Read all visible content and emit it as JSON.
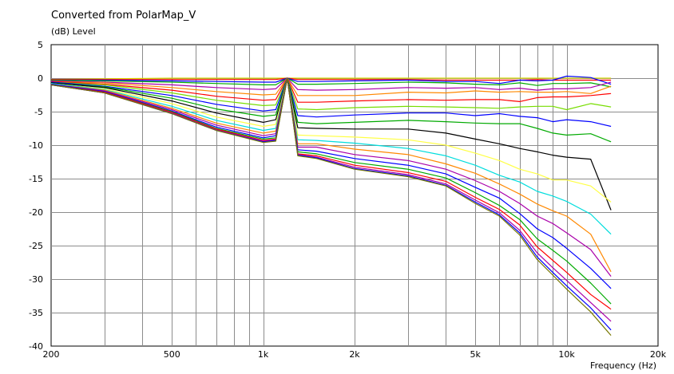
{
  "chart_data": {
    "type": "line",
    "title": "Converted from PolarMap_V",
    "ylabel": "(dB)  Level",
    "xlabel": "Frequency  (Hz)",
    "x_scale": "log",
    "xlim": [
      200,
      20000
    ],
    "ylim": [
      -40,
      5
    ],
    "grid": true,
    "legend": "none",
    "x_ticks": [
      {
        "v": 200,
        "t": "200"
      },
      {
        "v": 500,
        "t": "500"
      },
      {
        "v": 1000,
        "t": "1k"
      },
      {
        "v": 2000,
        "t": "2k"
      },
      {
        "v": 5000,
        "t": "5k"
      },
      {
        "v": 10000,
        "t": "10k"
      },
      {
        "v": 20000,
        "t": "20k"
      }
    ],
    "y_ticks": [
      5,
      0,
      -5,
      -10,
      -15,
      -20,
      -25,
      -30,
      -35,
      -40
    ],
    "x": [
      200,
      300,
      500,
      700,
      1000,
      1100,
      1200,
      1300,
      1500,
      2000,
      3000,
      4000,
      5000,
      6000,
      7000,
      8000,
      9000,
      10000,
      12000,
      14000
    ],
    "series": [
      {
        "color": "#d4d400",
        "values": [
          -0.2,
          -0.1,
          0,
          0,
          0,
          0,
          0,
          0,
          0,
          0,
          0,
          0,
          0,
          0,
          0,
          0,
          0,
          0,
          0,
          0
        ]
      },
      {
        "color": "#ff0000",
        "values": [
          -0.2,
          -0.2,
          -0.2,
          -0.2,
          -0.2,
          -0.2,
          0,
          -0.2,
          -0.2,
          -0.2,
          -0.2,
          -0.3,
          -0.3,
          -0.3,
          -0.3,
          -0.2,
          -0.3,
          -0.3,
          -0.3,
          -0.3
        ]
      },
      {
        "color": "#0000ff",
        "values": [
          -0.3,
          -0.3,
          -0.4,
          -0.5,
          -0.6,
          -0.6,
          0,
          -0.5,
          -0.5,
          -0.4,
          -0.3,
          -0.5,
          -0.5,
          -0.8,
          -0.3,
          -0.4,
          -0.3,
          0.3,
          0.1,
          -0.9
        ]
      },
      {
        "color": "#00aa00",
        "values": [
          -0.3,
          -0.4,
          -0.6,
          -0.8,
          -1.0,
          -1.0,
          0,
          -0.9,
          -0.9,
          -0.8,
          -0.6,
          -0.7,
          -0.9,
          -1.0,
          -0.7,
          -1.1,
          -0.8,
          -0.8,
          -0.7,
          -1.3
        ]
      },
      {
        "color": "#aa00aa",
        "values": [
          -0.4,
          -0.6,
          -1.0,
          -1.4,
          -1.7,
          -1.6,
          0,
          -1.7,
          -1.8,
          -1.7,
          -1.4,
          -1.5,
          -1.4,
          -1.7,
          -1.5,
          -1.8,
          -1.6,
          -1.6,
          -1.4,
          -0.6
        ]
      },
      {
        "color": "#ff8800",
        "values": [
          -0.5,
          -0.7,
          -1.4,
          -2.0,
          -2.5,
          -2.4,
          0,
          -2.6,
          -2.6,
          -2.6,
          -2.1,
          -2.2,
          -1.9,
          -2.1,
          -2.0,
          -2.1,
          -2.1,
          -2.0,
          -2.3,
          -1.2
        ]
      },
      {
        "color": "#ff0000",
        "values": [
          -0.5,
          -0.9,
          -1.8,
          -2.7,
          -3.3,
          -3.2,
          0,
          -3.6,
          -3.6,
          -3.4,
          -3.2,
          -3.3,
          -3.2,
          -3.2,
          -3.5,
          -2.9,
          -2.8,
          -2.8,
          -2.6,
          -2.3
        ]
      },
      {
        "color": "#77dd00",
        "values": [
          -0.6,
          -1.0,
          -2.2,
          -3.3,
          -4.1,
          -4.0,
          0,
          -4.6,
          -4.7,
          -4.4,
          -4.2,
          -4.3,
          -4.4,
          -4.5,
          -4.3,
          -4.2,
          -4.2,
          -4.7,
          -3.8,
          -4.3
        ]
      },
      {
        "color": "#0000ff",
        "values": [
          -0.6,
          -1.2,
          -2.6,
          -3.9,
          -4.9,
          -4.7,
          0,
          -5.6,
          -5.8,
          -5.5,
          -5.2,
          -5.2,
          -5.6,
          -5.3,
          -5.7,
          -5.9,
          -6.5,
          -6.2,
          -6.5,
          -7.2
        ]
      },
      {
        "color": "#00aa00",
        "values": [
          -0.7,
          -1.3,
          -3.0,
          -4.6,
          -5.7,
          -5.5,
          0,
          -6.6,
          -6.8,
          -6.6,
          -6.3,
          -6.5,
          -6.7,
          -6.8,
          -6.8,
          -7.5,
          -8.2,
          -8.5,
          -8.3,
          -9.5
        ]
      },
      {
        "color": "#000000",
        "values": [
          -0.7,
          -1.4,
          -3.4,
          -5.2,
          -6.6,
          -6.2,
          0,
          -7.4,
          -7.5,
          -7.6,
          -7.6,
          -8.2,
          -9.1,
          -9.8,
          -10.5,
          -11.0,
          -11.5,
          -11.8,
          -12.1,
          -19.7
        ]
      },
      {
        "color": "#ffff44",
        "values": [
          -0.8,
          -1.6,
          -3.8,
          -5.8,
          -7.2,
          -6.9,
          0,
          -8.5,
          -8.6,
          -8.8,
          -9.2,
          -10.0,
          -11.2,
          -12.3,
          -13.6,
          -14.3,
          -15.2,
          -15.2,
          -16.1,
          -18.5
        ]
      },
      {
        "color": "#00dddd",
        "values": [
          -0.8,
          -1.7,
          -4.2,
          -6.3,
          -7.8,
          -7.5,
          0,
          -9.2,
          -9.3,
          -9.7,
          -10.5,
          -11.6,
          -13.0,
          -14.5,
          -15.5,
          -16.9,
          -17.6,
          -18.4,
          -20.3,
          -23.3
        ]
      },
      {
        "color": "#ff8800",
        "values": [
          -0.9,
          -1.8,
          -4.5,
          -6.7,
          -8.2,
          -7.9,
          0,
          -9.8,
          -9.8,
          -10.6,
          -11.4,
          -12.8,
          -14.2,
          -15.8,
          -17.3,
          -18.8,
          -19.8,
          -20.6,
          -23.3,
          -28.9
        ]
      },
      {
        "color": "#aa00aa",
        "values": [
          -0.9,
          -1.9,
          -4.7,
          -7.0,
          -8.6,
          -8.3,
          0,
          -10.3,
          -10.3,
          -11.4,
          -12.3,
          -13.6,
          -15.3,
          -16.9,
          -18.7,
          -20.6,
          -21.7,
          -23.1,
          -25.6,
          -29.6
        ]
      },
      {
        "color": "#0000ff",
        "values": [
          -0.9,
          -2.0,
          -4.9,
          -7.3,
          -8.9,
          -8.6,
          0,
          -10.7,
          -10.9,
          -12.0,
          -13.0,
          -14.3,
          -16.3,
          -17.9,
          -20.2,
          -22.5,
          -23.8,
          -25.4,
          -28.4,
          -31.4
        ]
      },
      {
        "color": "#00aa00",
        "values": [
          -1.0,
          -2.1,
          -5.0,
          -7.5,
          -9.1,
          -8.9,
          0,
          -11.0,
          -11.3,
          -12.6,
          -13.6,
          -14.9,
          -17.1,
          -19.0,
          -21.1,
          -24.0,
          -25.7,
          -27.3,
          -30.6,
          -33.7
        ]
      },
      {
        "color": "#ff0000",
        "values": [
          -1.0,
          -2.1,
          -5.1,
          -7.6,
          -9.3,
          -9.1,
          0,
          -11.3,
          -11.6,
          -13.0,
          -14.1,
          -15.4,
          -17.8,
          -19.6,
          -21.9,
          -25.2,
          -27.2,
          -29.0,
          -32.3,
          -34.5
        ]
      },
      {
        "color": "#aa00aa",
        "values": [
          -1.0,
          -2.2,
          -5.2,
          -7.7,
          -9.4,
          -9.2,
          0,
          -11.4,
          -11.8,
          -13.3,
          -14.4,
          -15.8,
          -18.2,
          -20.1,
          -22.7,
          -26.1,
          -28.3,
          -30.2,
          -33.5,
          -36.3
        ]
      },
      {
        "color": "#0000ff",
        "values": [
          -1.0,
          -2.2,
          -5.3,
          -7.8,
          -9.5,
          -9.3,
          0,
          -11.5,
          -11.9,
          -13.5,
          -14.6,
          -16.0,
          -18.5,
          -20.4,
          -23.1,
          -26.7,
          -29.0,
          -31.0,
          -34.3,
          -37.6
        ]
      },
      {
        "color": "#777700",
        "values": [
          -1.0,
          -2.2,
          -5.3,
          -7.8,
          -9.6,
          -9.4,
          0,
          -11.6,
          -12.0,
          -13.6,
          -14.7,
          -16.1,
          -18.7,
          -20.6,
          -23.4,
          -27.1,
          -29.4,
          -31.5,
          -34.9,
          -38.4
        ]
      }
    ]
  }
}
